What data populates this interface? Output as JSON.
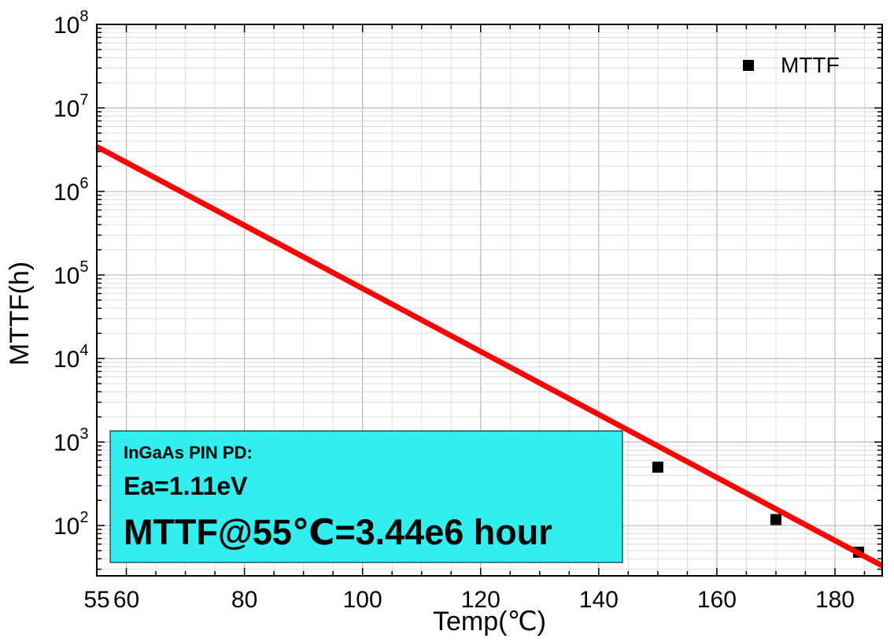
{
  "chart_data": {
    "type": "scatter",
    "title": "",
    "xlabel": "Temp(℃)",
    "ylabel": "MTTF(h)",
    "xlim": [
      55,
      188
    ],
    "ylim": [
      25,
      100000000
    ],
    "yscale": "log",
    "grid": true,
    "x_ticks": [
      55,
      60,
      80,
      100,
      120,
      140,
      160,
      180
    ],
    "y_ticks": [
      {
        "value": 100,
        "base": "10",
        "exp": "2"
      },
      {
        "value": 1000,
        "base": "10",
        "exp": "3"
      },
      {
        "value": 10000,
        "base": "10",
        "exp": "4"
      },
      {
        "value": 100000,
        "base": "10",
        "exp": "5"
      },
      {
        "value": 1000000,
        "base": "10",
        "exp": "6"
      },
      {
        "value": 10000000,
        "base": "10",
        "exp": "7"
      },
      {
        "value": 100000000,
        "base": "10",
        "exp": "8"
      }
    ],
    "series": [
      {
        "name": "MTTF",
        "kind": "scatter",
        "marker": "square",
        "color": "#000000",
        "x": [
          150,
          170,
          184
        ],
        "y": [
          500,
          118,
          48
        ]
      },
      {
        "kind": "line",
        "color": "#ff0000",
        "x": [
          55,
          188
        ],
        "y": [
          3440000,
          33
        ]
      }
    ],
    "legend": {
      "position": "top-right",
      "entries": [
        "MTTF"
      ]
    },
    "annotation": {
      "lines": [
        "InGaAs PIN PD:",
        "Ea=1.11eV",
        "MTTF@55℃=3.44e6 hour"
      ],
      "background": "#33eeee",
      "position": "bottom-left"
    }
  }
}
